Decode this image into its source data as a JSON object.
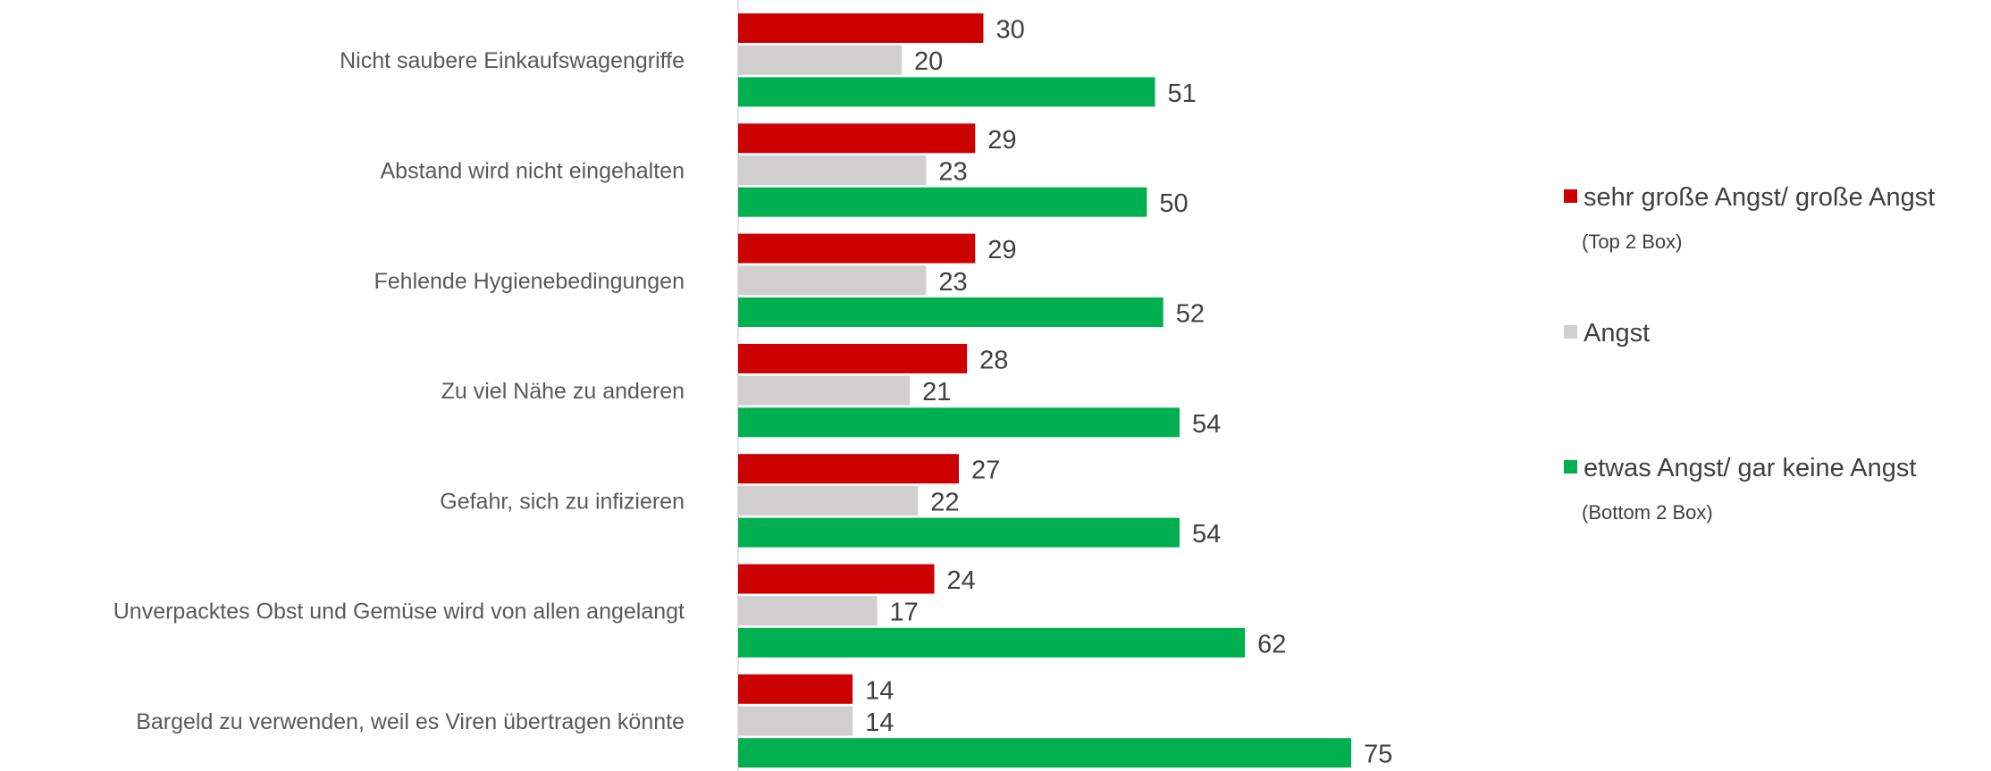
{
  "chart_data": {
    "type": "bar",
    "orientation": "horizontal",
    "categories": [
      "Nicht saubere Einkaufswagengriffe",
      "Abstand wird nicht eingehalten",
      "Fehlende Hygienebedingungen",
      "Zu viel Nähe zu anderen",
      "Gefahr, sich zu infizieren",
      "Unverpacktes Obst und Gemüse wird von allen angelangt",
      "Bargeld zu verwenden, weil es Viren übertragen könnte"
    ],
    "series": [
      {
        "name": "sehr große Angst/ große Angst",
        "subtitle": "(Top 2 Box)",
        "color": "#cc0000",
        "values": [
          30,
          29,
          29,
          28,
          27,
          24,
          14
        ]
      },
      {
        "name": "Angst",
        "subtitle": "",
        "color": "#d0cece",
        "values": [
          20,
          23,
          23,
          21,
          22,
          17,
          14
        ]
      },
      {
        "name": "etwas Angst/ gar keine Angst",
        "subtitle": "(Bottom 2 Box)",
        "color": "#00b050",
        "values": [
          51,
          50,
          52,
          54,
          54,
          62,
          75
        ]
      }
    ],
    "xlim": [
      0,
      100
    ],
    "grid": false,
    "legend_position": "right"
  }
}
